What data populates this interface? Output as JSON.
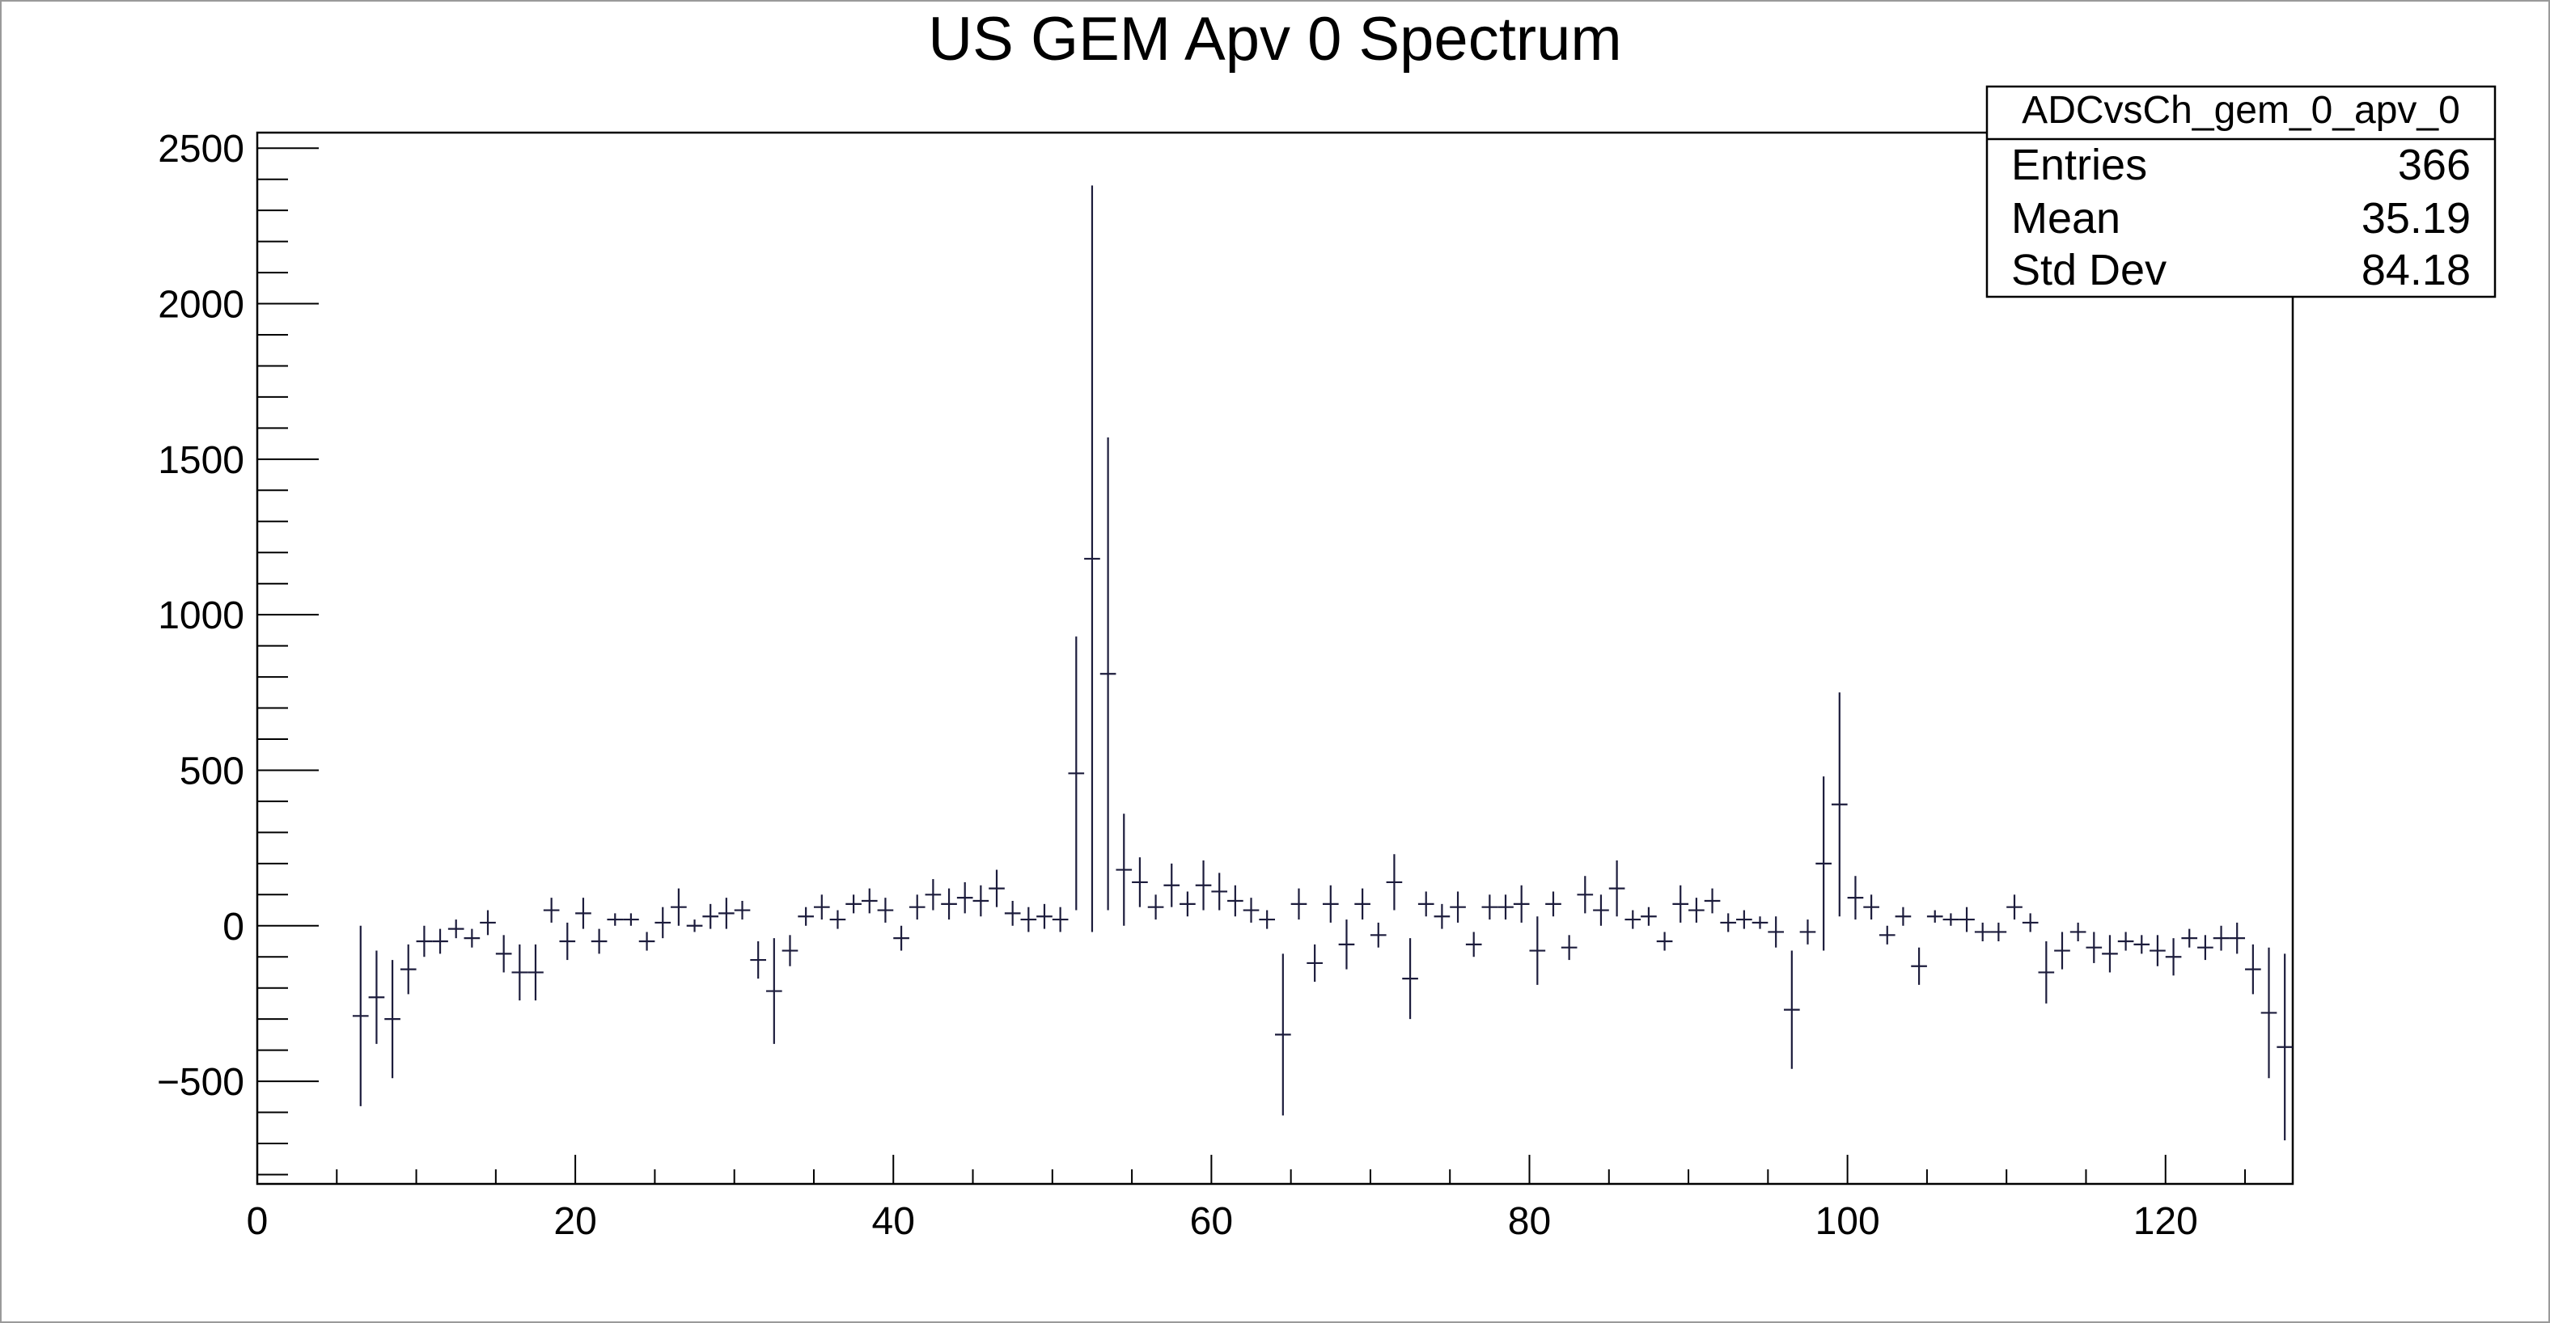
{
  "chart_data": {
    "type": "scatter",
    "title": "US GEM Apv 0 Spectrum",
    "xlabel": "",
    "ylabel": "",
    "xlim": [
      0,
      128
    ],
    "ylim": [
      -830,
      2550
    ],
    "x_ticks": [
      0,
      20,
      40,
      60,
      80,
      100,
      120
    ],
    "y_ticks": [
      -500,
      0,
      500,
      1000,
      1500,
      2000,
      2500
    ],
    "x_tick_labels": [
      "0",
      "20",
      "40",
      "60",
      "80",
      "100",
      "120"
    ],
    "y_tick_labels": [
      "−500",
      "0",
      "500",
      "1000",
      "1500",
      "2000",
      "2500"
    ],
    "grid": false,
    "error_bars": true,
    "series": [
      {
        "marker_color": "#1c1c3c",
        "points": [
          {
            "x": 6.5,
            "y": -290,
            "err": 290
          },
          {
            "x": 7.5,
            "y": -230,
            "err": 150
          },
          {
            "x": 8.5,
            "y": -300,
            "err": 190
          },
          {
            "x": 9.5,
            "y": -140,
            "err": 80
          },
          {
            "x": 10.5,
            "y": -50,
            "err": 50
          },
          {
            "x": 11.5,
            "y": -50,
            "err": 40
          },
          {
            "x": 12.5,
            "y": -10,
            "err": 30
          },
          {
            "x": 13.5,
            "y": -40,
            "err": 30
          },
          {
            "x": 14.5,
            "y": 10,
            "err": 40
          },
          {
            "x": 15.5,
            "y": -90,
            "err": 60
          },
          {
            "x": 16.5,
            "y": -150,
            "err": 90
          },
          {
            "x": 17.5,
            "y": -150,
            "err": 90
          },
          {
            "x": 18.5,
            "y": 50,
            "err": 40
          },
          {
            "x": 19.5,
            "y": -50,
            "err": 60
          },
          {
            "x": 20.5,
            "y": 40,
            "err": 50
          },
          {
            "x": 21.5,
            "y": -50,
            "err": 40
          },
          {
            "x": 22.5,
            "y": 20,
            "err": 20
          },
          {
            "x": 23.5,
            "y": 20,
            "err": 20
          },
          {
            "x": 24.5,
            "y": -50,
            "err": 30
          },
          {
            "x": 25.5,
            "y": 10,
            "err": 50
          },
          {
            "x": 26.5,
            "y": 60,
            "err": 60
          },
          {
            "x": 27.5,
            "y": 0,
            "err": 20
          },
          {
            "x": 28.5,
            "y": 30,
            "err": 40
          },
          {
            "x": 29.5,
            "y": 40,
            "err": 50
          },
          {
            "x": 30.5,
            "y": 50,
            "err": 30
          },
          {
            "x": 31.5,
            "y": -110,
            "err": 60
          },
          {
            "x": 32.5,
            "y": -210,
            "err": 170
          },
          {
            "x": 33.5,
            "y": -80,
            "err": 50
          },
          {
            "x": 34.5,
            "y": 30,
            "err": 30
          },
          {
            "x": 35.5,
            "y": 60,
            "err": 40
          },
          {
            "x": 36.5,
            "y": 20,
            "err": 30
          },
          {
            "x": 37.5,
            "y": 70,
            "err": 30
          },
          {
            "x": 38.5,
            "y": 80,
            "err": 40
          },
          {
            "x": 39.5,
            "y": 50,
            "err": 40
          },
          {
            "x": 40.5,
            "y": -40,
            "err": 40
          },
          {
            "x": 41.5,
            "y": 60,
            "err": 40
          },
          {
            "x": 42.5,
            "y": 100,
            "err": 50
          },
          {
            "x": 43.5,
            "y": 70,
            "err": 50
          },
          {
            "x": 44.5,
            "y": 90,
            "err": 50
          },
          {
            "x": 45.5,
            "y": 80,
            "err": 50
          },
          {
            "x": 46.5,
            "y": 120,
            "err": 60
          },
          {
            "x": 47.5,
            "y": 40,
            "err": 40
          },
          {
            "x": 48.5,
            "y": 20,
            "err": 40
          },
          {
            "x": 49.5,
            "y": 30,
            "err": 40
          },
          {
            "x": 50.5,
            "y": 20,
            "err": 40
          },
          {
            "x": 51.5,
            "y": 490,
            "err": 440
          },
          {
            "x": 52.5,
            "y": 1180,
            "err": 1200
          },
          {
            "x": 53.5,
            "y": 810,
            "err": 760
          },
          {
            "x": 54.5,
            "y": 180,
            "err": 180
          },
          {
            "x": 55.5,
            "y": 140,
            "err": 80
          },
          {
            "x": 56.5,
            "y": 60,
            "err": 40
          },
          {
            "x": 57.5,
            "y": 130,
            "err": 70
          },
          {
            "x": 58.5,
            "y": 70,
            "err": 40
          },
          {
            "x": 59.5,
            "y": 130,
            "err": 80
          },
          {
            "x": 60.5,
            "y": 110,
            "err": 60
          },
          {
            "x": 61.5,
            "y": 80,
            "err": 50
          },
          {
            "x": 62.5,
            "y": 50,
            "err": 40
          },
          {
            "x": 63.5,
            "y": 20,
            "err": 30
          },
          {
            "x": 64.5,
            "y": -350,
            "err": 260
          },
          {
            "x": 65.5,
            "y": 70,
            "err": 50
          },
          {
            "x": 66.5,
            "y": -120,
            "err": 60
          },
          {
            "x": 67.5,
            "y": 70,
            "err": 60
          },
          {
            "x": 68.5,
            "y": -60,
            "err": 80
          },
          {
            "x": 69.5,
            "y": 70,
            "err": 50
          },
          {
            "x": 70.5,
            "y": -30,
            "err": 40
          },
          {
            "x": 71.5,
            "y": 140,
            "err": 90
          },
          {
            "x": 72.5,
            "y": -170,
            "err": 130
          },
          {
            "x": 73.5,
            "y": 70,
            "err": 40
          },
          {
            "x": 74.5,
            "y": 30,
            "err": 40
          },
          {
            "x": 75.5,
            "y": 60,
            "err": 50
          },
          {
            "x": 76.5,
            "y": -60,
            "err": 40
          },
          {
            "x": 77.5,
            "y": 60,
            "err": 40
          },
          {
            "x": 78.5,
            "y": 60,
            "err": 40
          },
          {
            "x": 79.5,
            "y": 70,
            "err": 60
          },
          {
            "x": 80.5,
            "y": -80,
            "err": 110
          },
          {
            "x": 81.5,
            "y": 70,
            "err": 40
          },
          {
            "x": 82.5,
            "y": -70,
            "err": 40
          },
          {
            "x": 83.5,
            "y": 100,
            "err": 60
          },
          {
            "x": 84.5,
            "y": 50,
            "err": 50
          },
          {
            "x": 85.5,
            "y": 120,
            "err": 90
          },
          {
            "x": 86.5,
            "y": 20,
            "err": 30
          },
          {
            "x": 87.5,
            "y": 30,
            "err": 30
          },
          {
            "x": 88.5,
            "y": -50,
            "err": 30
          },
          {
            "x": 89.5,
            "y": 70,
            "err": 60
          },
          {
            "x": 90.5,
            "y": 50,
            "err": 40
          },
          {
            "x": 91.5,
            "y": 80,
            "err": 40
          },
          {
            "x": 92.5,
            "y": 10,
            "err": 30
          },
          {
            "x": 93.5,
            "y": 20,
            "err": 30
          },
          {
            "x": 94.5,
            "y": 10,
            "err": 20
          },
          {
            "x": 95.5,
            "y": -20,
            "err": 50
          },
          {
            "x": 96.5,
            "y": -270,
            "err": 190
          },
          {
            "x": 97.5,
            "y": -20,
            "err": 40
          },
          {
            "x": 98.5,
            "y": 200,
            "err": 280
          },
          {
            "x": 99.5,
            "y": 390,
            "err": 360
          },
          {
            "x": 100.5,
            "y": 90,
            "err": 70
          },
          {
            "x": 101.5,
            "y": 60,
            "err": 40
          },
          {
            "x": 102.5,
            "y": -30,
            "err": 30
          },
          {
            "x": 103.5,
            "y": 30,
            "err": 30
          },
          {
            "x": 104.5,
            "y": -130,
            "err": 60
          },
          {
            "x": 105.5,
            "y": 30,
            "err": 20
          },
          {
            "x": 106.5,
            "y": 20,
            "err": 20
          },
          {
            "x": 107.5,
            "y": 20,
            "err": 40
          },
          {
            "x": 108.5,
            "y": -20,
            "err": 30
          },
          {
            "x": 109.5,
            "y": -20,
            "err": 30
          },
          {
            "x": 110.5,
            "y": 60,
            "err": 40
          },
          {
            "x": 111.5,
            "y": 10,
            "err": 30
          },
          {
            "x": 112.5,
            "y": -150,
            "err": 100
          },
          {
            "x": 113.5,
            "y": -80,
            "err": 60
          },
          {
            "x": 114.5,
            "y": -20,
            "err": 30
          },
          {
            "x": 115.5,
            "y": -70,
            "err": 50
          },
          {
            "x": 116.5,
            "y": -90,
            "err": 60
          },
          {
            "x": 117.5,
            "y": -50,
            "err": 30
          },
          {
            "x": 118.5,
            "y": -60,
            "err": 30
          },
          {
            "x": 119.5,
            "y": -80,
            "err": 50
          },
          {
            "x": 120.5,
            "y": -100,
            "err": 60
          },
          {
            "x": 121.5,
            "y": -40,
            "err": 30
          },
          {
            "x": 122.5,
            "y": -70,
            "err": 40
          },
          {
            "x": 123.5,
            "y": -40,
            "err": 40
          },
          {
            "x": 124.5,
            "y": -40,
            "err": 50
          },
          {
            "x": 125.5,
            "y": -140,
            "err": 80
          },
          {
            "x": 126.5,
            "y": -280,
            "err": 210
          },
          {
            "x": 127.5,
            "y": -390,
            "err": 300
          }
        ]
      }
    ]
  },
  "stats_box": {
    "name": "ADCvsCh_gem_0_apv_0",
    "rows": [
      {
        "label": "Entries",
        "value": "366"
      },
      {
        "label": "Mean",
        "value": "35.19"
      },
      {
        "label": "Std Dev",
        "value": "84.18"
      }
    ]
  }
}
